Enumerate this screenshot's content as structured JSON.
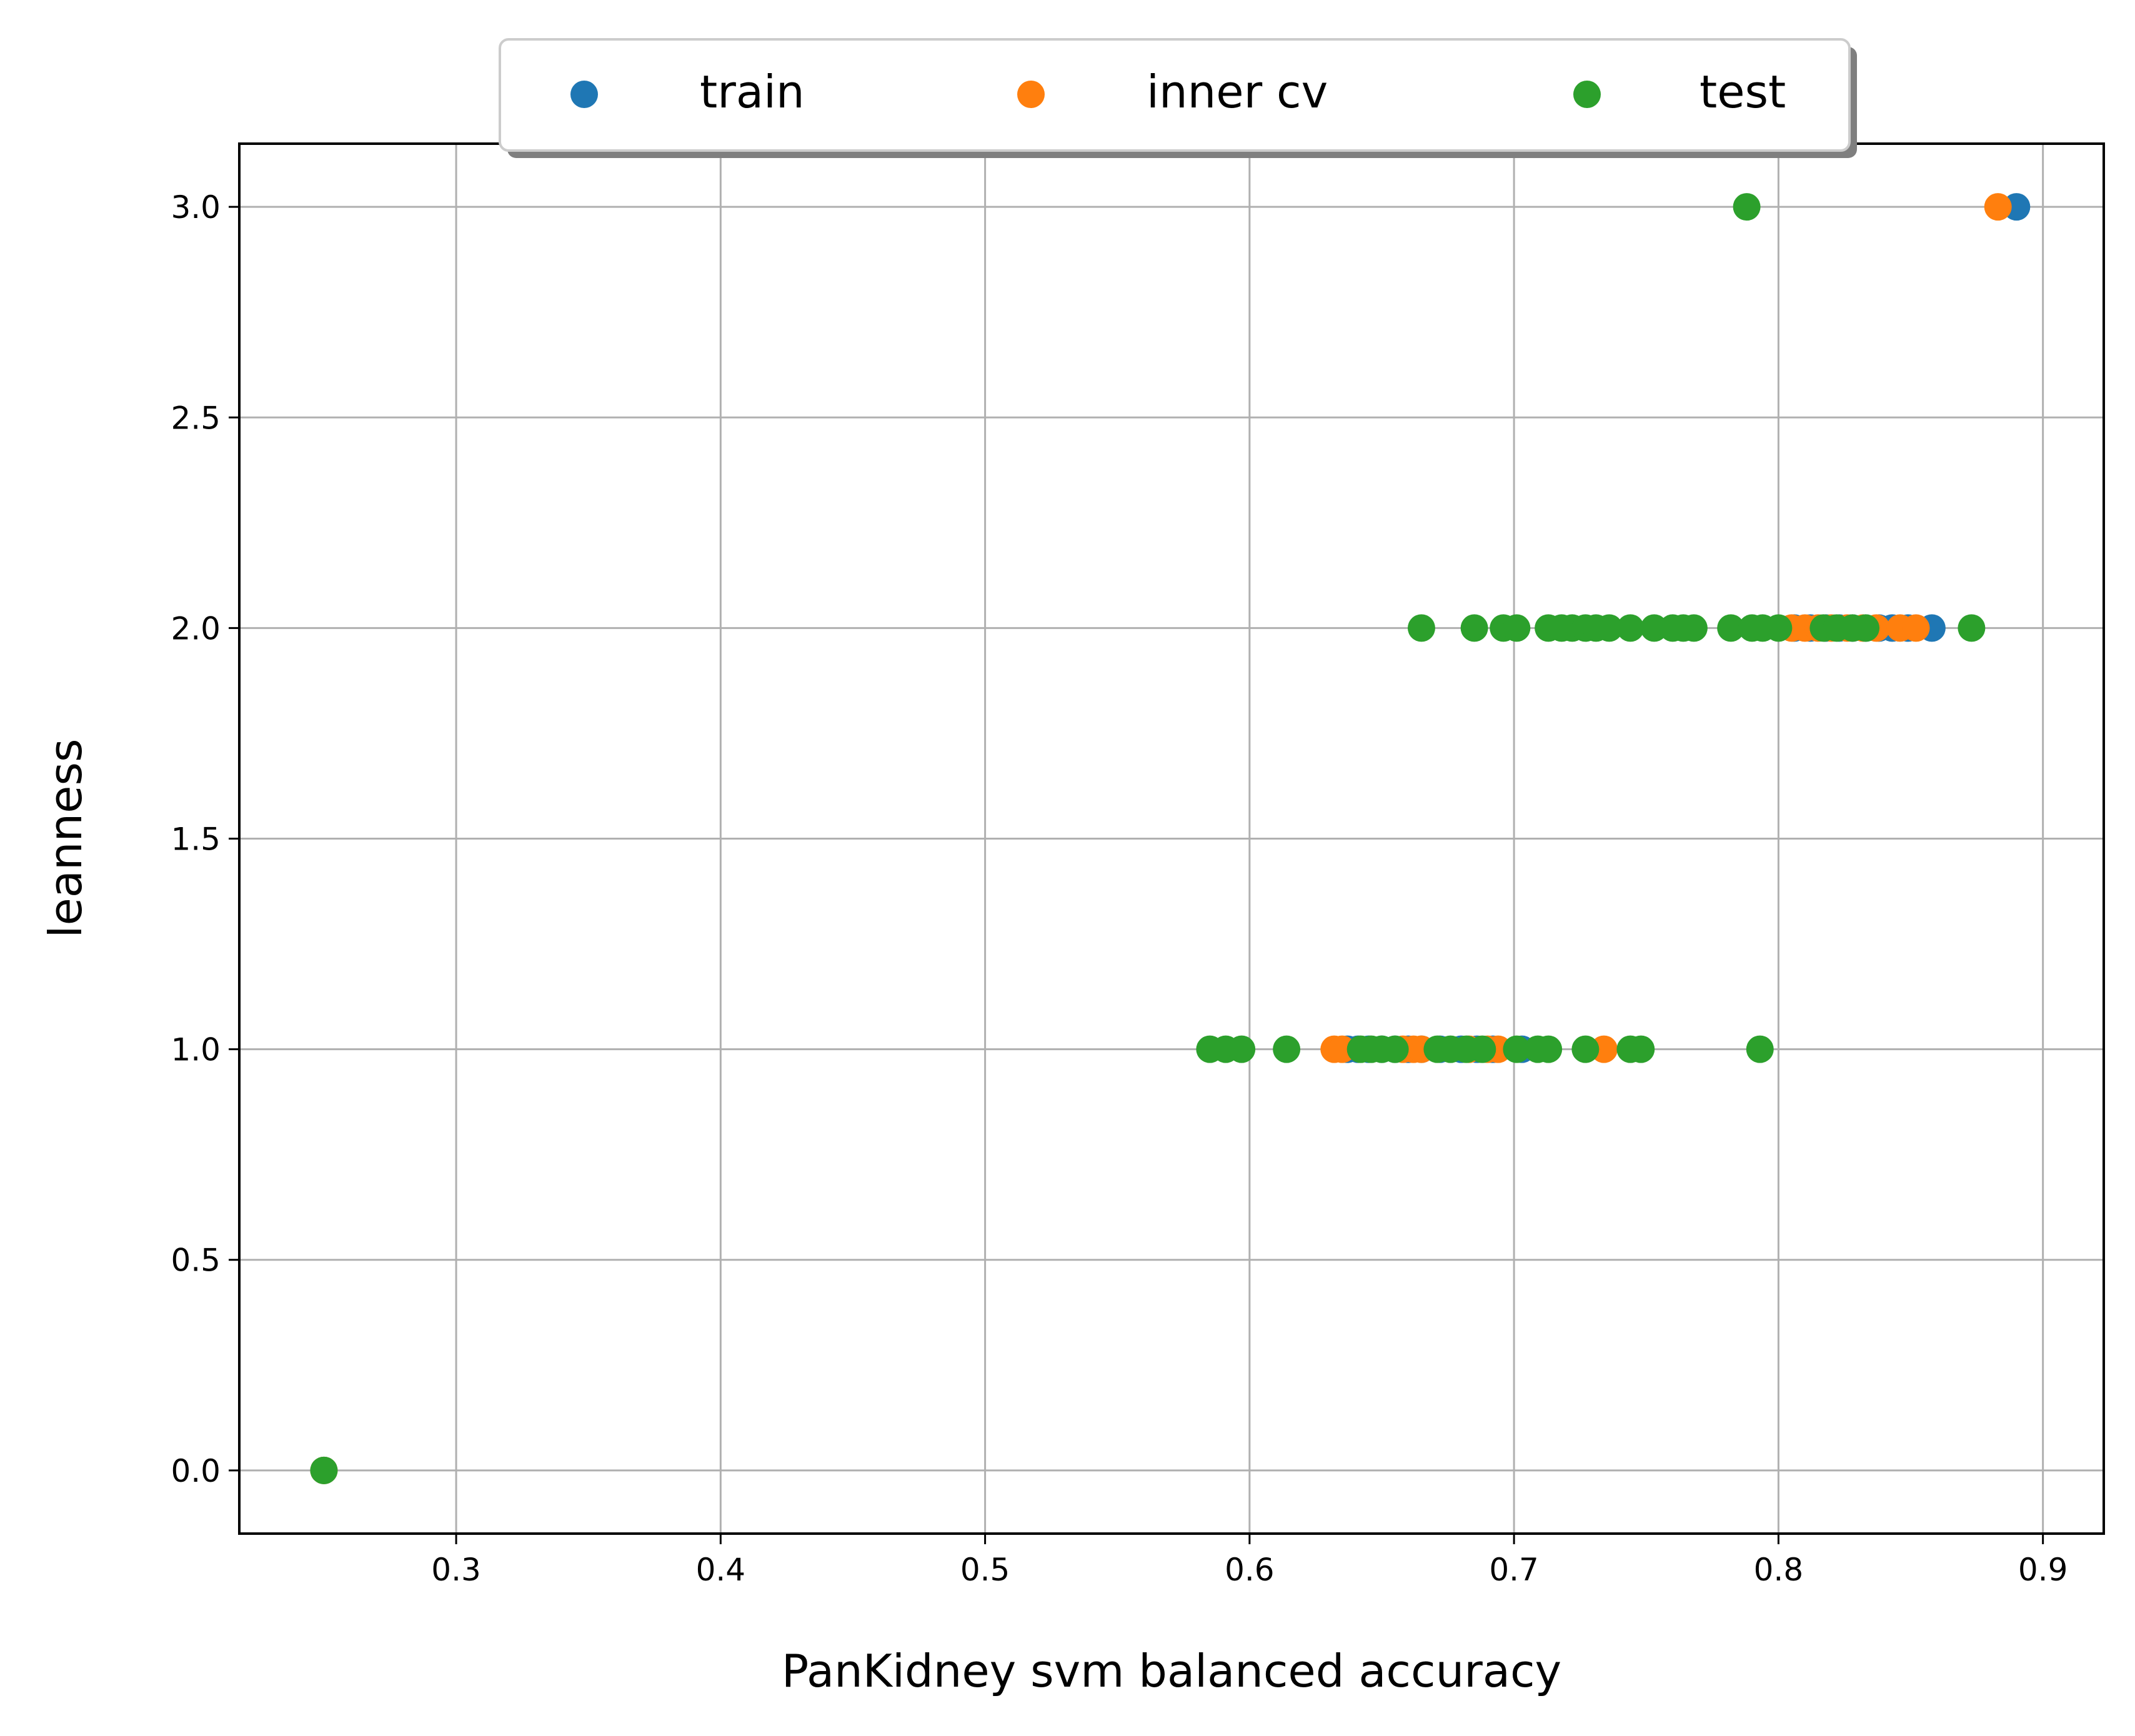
{
  "chart_data": {
    "type": "scatter",
    "title": "",
    "xlabel": "PanKidney svm balanced accuracy",
    "ylabel": "leanness",
    "xlim": [
      0.218,
      0.923
    ],
    "ylim": [
      -0.15,
      3.15
    ],
    "xticks": [
      0.3,
      0.4,
      0.5,
      0.6,
      0.7,
      0.8,
      0.9
    ],
    "xtick_labels": [
      "0.3",
      "0.4",
      "0.5",
      "0.6",
      "0.7",
      "0.8",
      "0.9"
    ],
    "yticks": [
      0.0,
      0.5,
      1.0,
      1.5,
      2.0,
      2.5,
      3.0
    ],
    "ytick_labels": [
      "0.0",
      "0.5",
      "1.0",
      "1.5",
      "2.0",
      "2.5",
      "3.0"
    ],
    "grid": true,
    "legend": {
      "placement": "top-center above plot",
      "columns": 3
    },
    "series": [
      {
        "name": "train",
        "color": "#1f77b4",
        "points": [
          [
            0.89,
            3.0
          ],
          [
            0.806,
            2.0
          ],
          [
            0.812,
            2.0
          ],
          [
            0.818,
            2.0
          ],
          [
            0.823,
            2.0
          ],
          [
            0.828,
            2.0
          ],
          [
            0.833,
            2.0
          ],
          [
            0.838,
            2.0
          ],
          [
            0.843,
            2.0
          ],
          [
            0.849,
            2.0
          ],
          [
            0.858,
            2.0
          ],
          [
            0.637,
            1.0
          ],
          [
            0.641,
            1.0
          ],
          [
            0.645,
            1.0
          ],
          [
            0.65,
            1.0
          ],
          [
            0.655,
            1.0
          ],
          [
            0.66,
            1.0
          ],
          [
            0.665,
            1.0
          ],
          [
            0.672,
            1.0
          ],
          [
            0.68,
            1.0
          ],
          [
            0.686,
            1.0
          ],
          [
            0.692,
            1.0
          ],
          [
            0.703,
            1.0
          ],
          [
            0.25,
            0.0
          ]
        ]
      },
      {
        "name": "inner cv",
        "color": "#ff7f0e",
        "points": [
          [
            0.883,
            3.0
          ],
          [
            0.805,
            2.0
          ],
          [
            0.81,
            2.0
          ],
          [
            0.815,
            2.0
          ],
          [
            0.82,
            2.0
          ],
          [
            0.826,
            2.0
          ],
          [
            0.832,
            2.0
          ],
          [
            0.837,
            2.0
          ],
          [
            0.846,
            2.0
          ],
          [
            0.852,
            2.0
          ],
          [
            0.632,
            1.0
          ],
          [
            0.635,
            1.0
          ],
          [
            0.658,
            1.0
          ],
          [
            0.662,
            1.0
          ],
          [
            0.665,
            1.0
          ],
          [
            0.683,
            1.0
          ],
          [
            0.69,
            1.0
          ],
          [
            0.694,
            1.0
          ],
          [
            0.734,
            1.0
          ],
          [
            0.25,
            0.0
          ]
        ]
      },
      {
        "name": "test",
        "color": "#2ca02c",
        "points": [
          [
            0.788,
            3.0
          ],
          [
            0.665,
            2.0
          ],
          [
            0.685,
            2.0
          ],
          [
            0.696,
            2.0
          ],
          [
            0.701,
            2.0
          ],
          [
            0.713,
            2.0
          ],
          [
            0.718,
            2.0
          ],
          [
            0.722,
            2.0
          ],
          [
            0.727,
            2.0
          ],
          [
            0.731,
            2.0
          ],
          [
            0.736,
            2.0
          ],
          [
            0.744,
            2.0
          ],
          [
            0.753,
            2.0
          ],
          [
            0.76,
            2.0
          ],
          [
            0.764,
            2.0
          ],
          [
            0.768,
            2.0
          ],
          [
            0.782,
            2.0
          ],
          [
            0.79,
            2.0
          ],
          [
            0.794,
            2.0
          ],
          [
            0.8,
            2.0
          ],
          [
            0.817,
            2.0
          ],
          [
            0.822,
            2.0
          ],
          [
            0.828,
            2.0
          ],
          [
            0.833,
            2.0
          ],
          [
            0.873,
            2.0
          ],
          [
            0.585,
            1.0
          ],
          [
            0.591,
            1.0
          ],
          [
            0.597,
            1.0
          ],
          [
            0.614,
            1.0
          ],
          [
            0.642,
            1.0
          ],
          [
            0.646,
            1.0
          ],
          [
            0.65,
            1.0
          ],
          [
            0.655,
            1.0
          ],
          [
            0.671,
            1.0
          ],
          [
            0.676,
            1.0
          ],
          [
            0.682,
            1.0
          ],
          [
            0.688,
            1.0
          ],
          [
            0.701,
            1.0
          ],
          [
            0.709,
            1.0
          ],
          [
            0.713,
            1.0
          ],
          [
            0.727,
            1.0
          ],
          [
            0.744,
            1.0
          ],
          [
            0.748,
            1.0
          ],
          [
            0.793,
            1.0
          ],
          [
            0.25,
            0.0
          ]
        ]
      }
    ]
  }
}
